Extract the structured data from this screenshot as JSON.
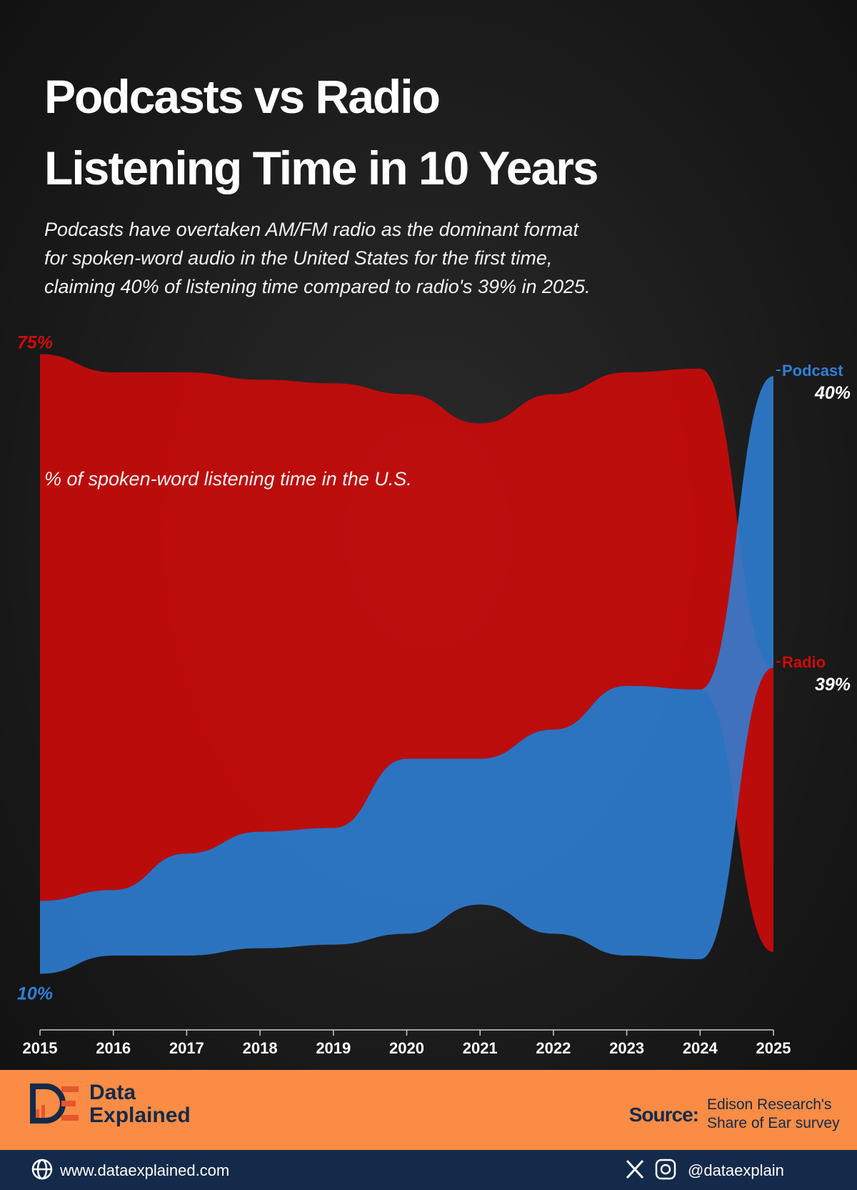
{
  "chart_data": {
    "type": "streamgraph",
    "title": [
      "Podcasts vs Radio",
      "Listening Time in 10 Years"
    ],
    "subtitle": [
      "Podcasts have overtaken AM/FM radio as the dominant format",
      "for spoken-word audio in the United States for the first time,",
      "claiming 40% of listening time compared to radio's 39% in 2025."
    ],
    "annotation": "% of spoken-word listening time in the U.S.",
    "x": [
      2015,
      2016,
      2017,
      2018,
      2019,
      2020,
      2021,
      2022,
      2023,
      2024,
      2025
    ],
    "xlim": [
      2015,
      2025
    ],
    "xticks": [
      2015,
      2016,
      2017,
      2018,
      2019,
      2020,
      2021,
      2022,
      2023,
      2024,
      2025
    ],
    "series": [
      {
        "name": "Radio",
        "color": "#d10a0a",
        "values": [
          75,
          71,
          66,
          62,
          61,
          50,
          46,
          46,
          43,
          44,
          39
        ],
        "value_labels": [
          "75%",
          null,
          null,
          null,
          null,
          null,
          null,
          null,
          null,
          null,
          "39%"
        ]
      },
      {
        "name": "Podcast",
        "color": "#2f80d6",
        "values": [
          10,
          9,
          14,
          16,
          16,
          24,
          20,
          28,
          37,
          37,
          40
        ],
        "value_labels": [
          "10%",
          null,
          null,
          null,
          null,
          null,
          null,
          null,
          null,
          null,
          "40%"
        ]
      }
    ]
  },
  "brand": {
    "line1": "Data",
    "line2": "Explained"
  },
  "source": {
    "label": "Source:",
    "lines": [
      "Edison Research's",
      "Share of Ear survey"
    ]
  },
  "website": "www.dataexplained.com",
  "handle": "@dataexplain"
}
